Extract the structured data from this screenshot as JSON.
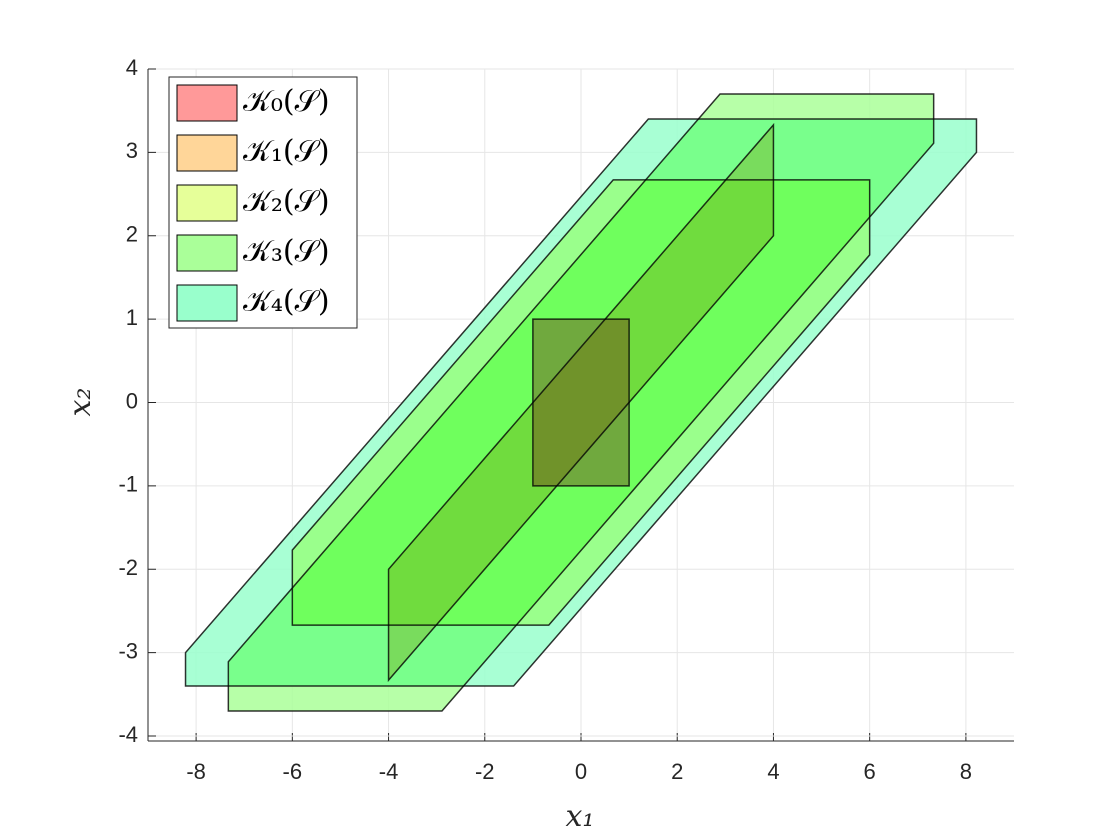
{
  "chart_data": {
    "type": "polygon",
    "x_label": "x₁",
    "y_label": "x₂",
    "xlim": [
      -9,
      9
    ],
    "ylim": [
      -4.06,
      4
    ],
    "xticks": [
      -8,
      -6,
      -4,
      -2,
      0,
      2,
      4,
      6,
      8
    ],
    "yticks": [
      -4,
      -3,
      -2,
      -1,
      0,
      1,
      2,
      3,
      4
    ],
    "grid": true,
    "legend": "upper left",
    "series": [
      {
        "name": "𝒦₀(𝒮)",
        "color": "#ff9999",
        "x": [
          -1,
          1,
          1,
          -1
        ],
        "y": [
          -1,
          -1,
          1,
          1
        ]
      },
      {
        "name": "𝒦₁(𝒮)",
        "color": "#ffd699",
        "x": [
          -4,
          4,
          4,
          -4
        ],
        "y": [
          -3.33,
          2,
          3.33,
          -2
        ]
      },
      {
        "name": "𝒦₂(𝒮)",
        "color": "#e6ff99",
        "x": [
          -6,
          -6,
          -0.67,
          6,
          6,
          0.67
        ],
        "y": [
          -1.77,
          -2.67,
          -2.67,
          1.77,
          2.67,
          2.67
        ]
      },
      {
        "name": "𝒦₃(𝒮)",
        "color": "#aaff99",
        "x": [
          -7.33,
          -7.33,
          -2.89,
          7.33,
          7.33,
          2.89
        ],
        "y": [
          -3.11,
          -3.7,
          -3.7,
          3.11,
          3.7,
          3.7
        ]
      },
      {
        "name": "𝒦₄(𝒮)",
        "color": "#99ffcc",
        "x": [
          -8.22,
          -8.22,
          -1.4,
          8.22,
          8.22,
          1.4
        ],
        "y": [
          -3.0,
          -3.4,
          -3.4,
          3.0,
          3.4,
          3.4
        ]
      }
    ]
  }
}
